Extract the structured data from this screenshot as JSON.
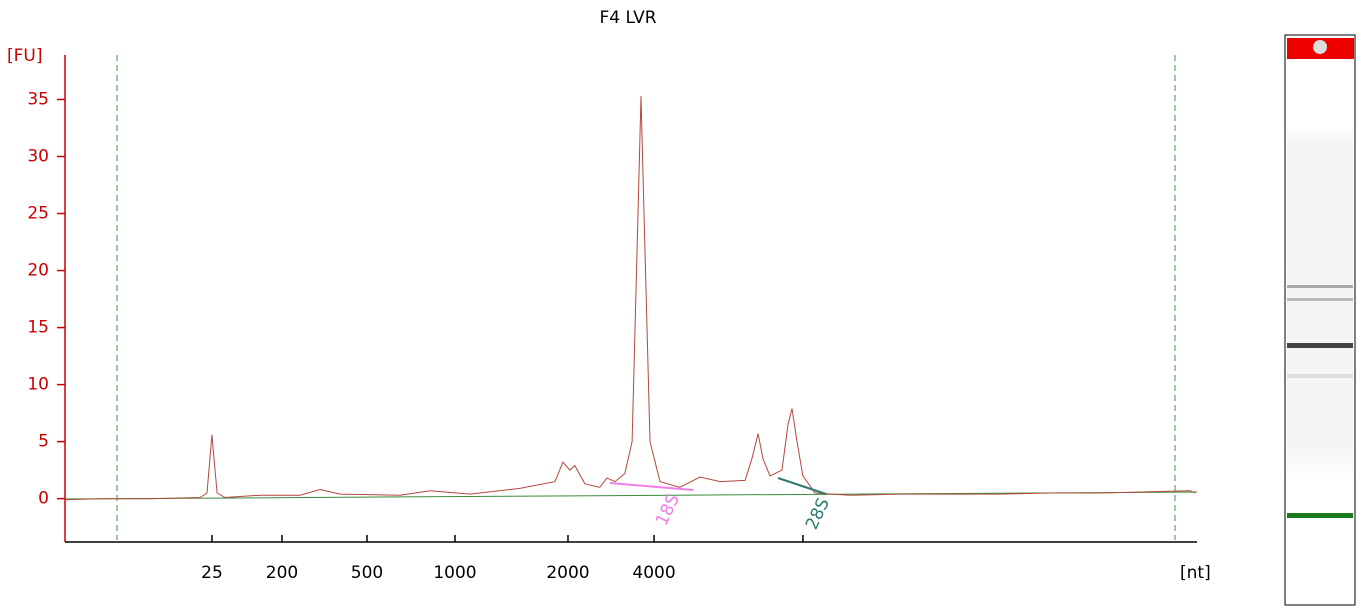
{
  "chart_data": {
    "type": "line",
    "title": "F4 LVR",
    "y_label": "[FU]",
    "x_label": "[nt]",
    "color": "#b5473c",
    "grid": false,
    "x": [
      17.0,
      18.64,
      20.98,
      23.32,
      23.65,
      23.88,
      24.12,
      24.49,
      26.13,
      28.0,
      28.94,
      29.88,
      32.68,
      34.09,
      35.96,
      38.3,
      39.94,
      40.31,
      40.64,
      40.87,
      41.34,
      42.04,
      42.37,
      42.75,
      43.21,
      43.55,
      43.83,
      43.97,
      44.11,
      44.39,
      44.86,
      45.79,
      46.73,
      47.67,
      48.84,
      49.16,
      49.45,
      49.68,
      50.01,
      50.57,
      50.85,
      51.04,
      51.27,
      51.55,
      52.12,
      53.75,
      56.09,
      60.78,
      63.12,
      65.46,
      67.8,
      69.67,
      69.91
    ],
    "values": [
      -0.1,
      0,
      0,
      0.1,
      0.5,
      5.6,
      0.5,
      0.1,
      0.3,
      0.3,
      0.8,
      0.4,
      0.3,
      0.7,
      0.4,
      0.9,
      1.5,
      3.2,
      2.5,
      2.9,
      1.3,
      1.0,
      1.8,
      1.5,
      2.2,
      5,
      25,
      35.3,
      25,
      5,
      1.5,
      1.0,
      1.9,
      1.5,
      1.6,
      3.5,
      5.7,
      3.5,
      2,
      2.5,
      6.5,
      7.9,
      5,
      2,
      0.5,
      0.3,
      0.4,
      0.4,
      0.5,
      0.5,
      0.6,
      0.7,
      0.5
    ],
    "xlim": [
      17,
      70
    ],
    "xticks": [
      {
        "value": 23.88,
        "label": "25"
      },
      {
        "value": 27.16,
        "label": "200"
      },
      {
        "value": 31.14,
        "label": "500"
      },
      {
        "value": 35.26,
        "label": "1000"
      },
      {
        "value": 40.55,
        "label": "2000"
      },
      {
        "value": 44.58,
        "label": "4000"
      },
      {
        "value": 51.55,
        "label": null
      }
    ],
    "ylim": [
      -3.8,
      38.9
    ],
    "yticks": [
      0,
      5,
      10,
      15,
      20,
      25,
      30,
      35
    ],
    "annotations": [
      {
        "text": "18S",
        "color": "#ee7ee8"
      },
      {
        "text": "28S",
        "color": "#2e7a6e"
      }
    ]
  }
}
